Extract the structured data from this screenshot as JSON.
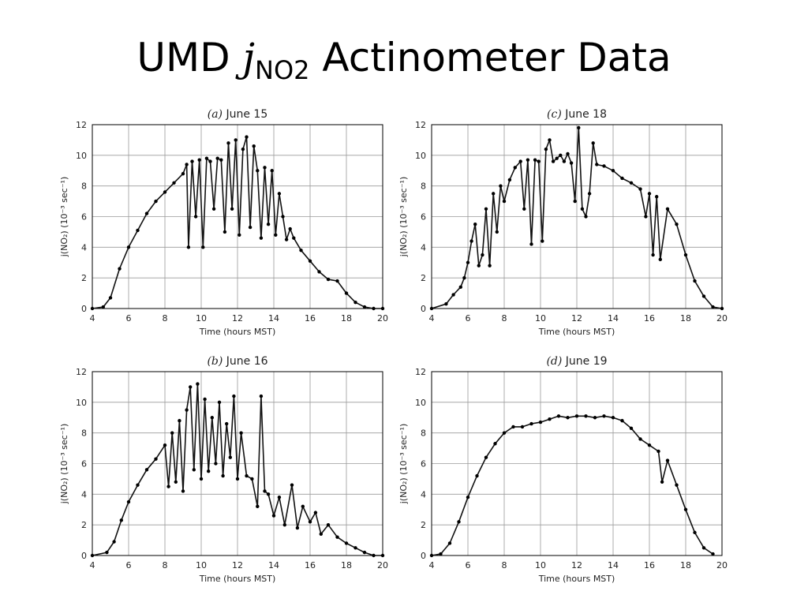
{
  "slide": {
    "title_prefix": "UMD ",
    "title_j": "j",
    "title_sub": "NO2",
    "title_suffix": " Actinometer Data"
  },
  "chart_data": [
    {
      "type": "scatter",
      "title_label": "(a)",
      "title_text": "June 15",
      "xlabel": "Time (hours MST)",
      "ylabel": "j(NO₂) (10⁻³ sec⁻¹)",
      "xlim": [
        4,
        20
      ],
      "ylim": [
        0,
        12
      ],
      "xticks": [
        4,
        6,
        8,
        10,
        12,
        14,
        16,
        18,
        20
      ],
      "yticks": [
        0,
        2,
        4,
        6,
        8,
        10,
        12
      ],
      "grid": true,
      "x": [
        4.0,
        4.6,
        5.0,
        5.5,
        6.0,
        6.5,
        7.0,
        7.5,
        8.0,
        8.5,
        9.0,
        9.2,
        9.3,
        9.5,
        9.7,
        9.9,
        10.1,
        10.3,
        10.5,
        10.7,
        10.9,
        11.1,
        11.3,
        11.5,
        11.7,
        11.9,
        12.1,
        12.3,
        12.5,
        12.7,
        12.9,
        13.1,
        13.3,
        13.5,
        13.7,
        13.9,
        14.1,
        14.3,
        14.5,
        14.7,
        14.9,
        15.1,
        15.5,
        16.0,
        16.5,
        17.0,
        17.5,
        18.0,
        18.5,
        19.0,
        19.5,
        20.0
      ],
      "y": [
        0.0,
        0.1,
        0.7,
        2.6,
        4.0,
        5.1,
        6.2,
        7.0,
        7.6,
        8.2,
        8.8,
        9.4,
        4.0,
        9.6,
        6.0,
        9.7,
        4.0,
        9.8,
        9.6,
        6.5,
        9.8,
        9.7,
        5.0,
        10.8,
        6.5,
        11.0,
        4.8,
        10.4,
        11.2,
        5.3,
        10.6,
        9.0,
        4.6,
        9.2,
        5.5,
        9.0,
        4.8,
        7.5,
        6.0,
        4.5,
        5.2,
        4.6,
        3.8,
        3.1,
        2.4,
        1.9,
        1.8,
        1.0,
        0.4,
        0.1,
        0.0,
        0.0
      ]
    },
    {
      "type": "scatter",
      "title_label": "(c)",
      "title_text": "June 18",
      "xlabel": "Time (hours MST)",
      "ylabel": "j(NO₂) (10⁻³ sec⁻¹)",
      "xlim": [
        4,
        20
      ],
      "ylim": [
        0,
        12
      ],
      "xticks": [
        4,
        6,
        8,
        10,
        12,
        14,
        16,
        18,
        20
      ],
      "yticks": [
        0,
        2,
        4,
        6,
        8,
        10,
        12
      ],
      "grid": true,
      "x": [
        4.0,
        4.8,
        5.2,
        5.6,
        5.8,
        6.0,
        6.2,
        6.4,
        6.6,
        6.8,
        7.0,
        7.2,
        7.4,
        7.6,
        7.8,
        8.0,
        8.3,
        8.6,
        8.9,
        9.1,
        9.3,
        9.5,
        9.7,
        9.9,
        10.1,
        10.3,
        10.5,
        10.7,
        10.9,
        11.1,
        11.3,
        11.5,
        11.7,
        11.9,
        12.1,
        12.3,
        12.5,
        12.7,
        12.9,
        13.1,
        13.5,
        14.0,
        14.5,
        15.0,
        15.5,
        15.8,
        16.0,
        16.2,
        16.4,
        16.6,
        17.0,
        17.5,
        18.0,
        18.5,
        19.0,
        19.5,
        20.0
      ],
      "y": [
        0.0,
        0.3,
        0.9,
        1.4,
        2.0,
        3.0,
        4.4,
        5.5,
        2.8,
        3.5,
        6.5,
        2.8,
        7.5,
        5.0,
        8.0,
        7.0,
        8.4,
        9.2,
        9.6,
        6.5,
        9.7,
        4.2,
        9.7,
        9.6,
        4.4,
        10.4,
        11.0,
        9.6,
        9.8,
        10.0,
        9.6,
        10.1,
        9.5,
        7.0,
        11.8,
        6.5,
        6.0,
        7.5,
        10.8,
        9.4,
        9.3,
        9.0,
        8.5,
        8.2,
        7.8,
        6.0,
        7.5,
        3.5,
        7.3,
        3.2,
        6.5,
        5.5,
        3.5,
        1.8,
        0.8,
        0.1,
        0.0
      ]
    },
    {
      "type": "scatter",
      "title_label": "(b)",
      "title_text": "June 16",
      "xlabel": "Time (hours MST)",
      "ylabel": "j(NO₂) (10⁻³ sec⁻¹)",
      "xlim": [
        4,
        20
      ],
      "ylim": [
        0,
        12
      ],
      "xticks": [
        4,
        6,
        8,
        10,
        12,
        14,
        16,
        18,
        20
      ],
      "yticks": [
        0,
        2,
        4,
        6,
        8,
        10,
        12
      ],
      "grid": true,
      "x": [
        4.0,
        4.8,
        5.2,
        5.6,
        6.0,
        6.5,
        7.0,
        7.5,
        8.0,
        8.2,
        8.4,
        8.6,
        8.8,
        9.0,
        9.2,
        9.4,
        9.6,
        9.8,
        10.0,
        10.2,
        10.4,
        10.6,
        10.8,
        11.0,
        11.2,
        11.4,
        11.6,
        11.8,
        12.0,
        12.2,
        12.5,
        12.8,
        13.1,
        13.3,
        13.5,
        13.7,
        14.0,
        14.3,
        14.6,
        15.0,
        15.3,
        15.6,
        16.0,
        16.3,
        16.6,
        17.0,
        17.5,
        18.0,
        18.5,
        19.0,
        19.5,
        20.0
      ],
      "y": [
        0.0,
        0.2,
        0.9,
        2.3,
        3.5,
        4.6,
        5.6,
        6.3,
        7.2,
        4.5,
        8.0,
        4.8,
        8.8,
        4.2,
        9.5,
        11.0,
        5.6,
        11.2,
        5.0,
        10.2,
        5.5,
        9.0,
        6.0,
        10.0,
        5.2,
        8.6,
        6.4,
        10.4,
        5.0,
        8.0,
        5.2,
        5.0,
        3.2,
        10.4,
        4.2,
        4.0,
        2.6,
        3.8,
        2.0,
        4.6,
        1.8,
        3.2,
        2.2,
        2.8,
        1.4,
        2.0,
        1.2,
        0.8,
        0.5,
        0.2,
        0.0,
        0.0
      ]
    },
    {
      "type": "scatter",
      "title_label": "(d)",
      "title_text": "June 19",
      "xlabel": "Time (hours MST)",
      "ylabel": "j(NO₂) (10⁻³ sec⁻¹)",
      "xlim": [
        4,
        20
      ],
      "ylim": [
        0,
        12
      ],
      "xticks": [
        4,
        6,
        8,
        10,
        12,
        14,
        16,
        18,
        20
      ],
      "yticks": [
        0,
        2,
        4,
        6,
        8,
        10,
        12
      ],
      "grid": true,
      "x": [
        4.0,
        4.5,
        5.0,
        5.5,
        6.0,
        6.5,
        7.0,
        7.5,
        8.0,
        8.5,
        9.0,
        9.5,
        10.0,
        10.5,
        11.0,
        11.5,
        12.0,
        12.5,
        13.0,
        13.5,
        14.0,
        14.5,
        15.0,
        15.5,
        16.0,
        16.5,
        16.7,
        17.0,
        17.5,
        18.0,
        18.5,
        19.0,
        19.5
      ],
      "y": [
        0.0,
        0.1,
        0.8,
        2.2,
        3.8,
        5.2,
        6.4,
        7.3,
        8.0,
        8.4,
        8.4,
        8.6,
        8.7,
        8.9,
        9.1,
        9.0,
        9.1,
        9.1,
        9.0,
        9.1,
        9.0,
        8.8,
        8.3,
        7.6,
        7.2,
        6.8,
        4.8,
        6.2,
        4.6,
        3.0,
        1.5,
        0.5,
        0.1
      ]
    }
  ]
}
